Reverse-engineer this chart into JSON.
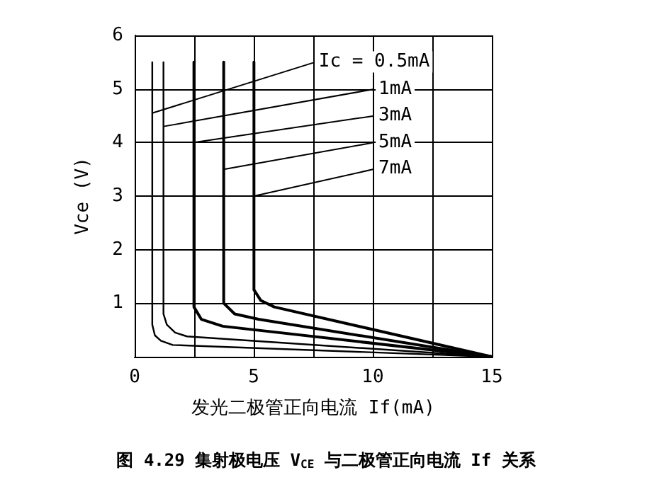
{
  "chart_data": {
    "type": "line",
    "title": "图 4.29 集射极电压 V$_{CE}$ 与二极管正向电流 If 关系",
    "xlabel": "发光二极管正向电流 If(mA)",
    "ylabel": "Vce (V)",
    "xlim": [
      0,
      15
    ],
    "xticks": [
      0,
      {
        "value": 2.5,
        "label": null
      },
      5,
      {
        "value": 7.5,
        "label": null
      },
      10,
      {
        "value": 12.5,
        "label": null
      },
      15
    ],
    "ylim": [
      0,
      6
    ],
    "yticks": [
      {
        "value": 0,
        "label": null
      },
      1,
      2,
      3,
      4,
      5,
      6
    ],
    "grid": true,
    "marker": "none",
    "line_style": "solid",
    "annotations": [
      {
        "text": "Ic = 0.5mA",
        "x": 0.74,
        "y": 4.55
      },
      {
        "text": "1mA",
        "x": 1.21,
        "y": 4.3
      },
      {
        "text": "3mA",
        "x": 2.49,
        "y": 4.0
      },
      {
        "text": "5mA",
        "x": 3.74,
        "y": 3.5
      },
      {
        "text": "7mA",
        "x": 5.01,
        "y": 3.0
      }
    ],
    "series": [
      {
        "color": "#000000",
        "x": [
          0.74,
          0.74,
          0.85,
          1.1,
          1.6,
          15
        ],
        "values": [
          5.5,
          0.6,
          0.4,
          0.3,
          0.22,
          0
        ]
      },
      {
        "color": "#000000",
        "x": [
          1.21,
          1.21,
          1.35,
          1.7,
          2.2,
          15
        ],
        "values": [
          5.5,
          0.8,
          0.6,
          0.45,
          0.38,
          0
        ]
      },
      {
        "color": "#000000",
        "x": [
          2.49,
          2.49,
          2.8,
          3.7,
          15
        ],
        "values": [
          5.5,
          0.93,
          0.7,
          0.57,
          0
        ]
      },
      {
        "color": "#000000",
        "x": [
          3.74,
          3.74,
          4.2,
          5.2,
          15
        ],
        "values": [
          5.5,
          1.0,
          0.8,
          0.7,
          0
        ]
      },
      {
        "color": "#000000",
        "x": [
          5.01,
          5.01,
          5.3,
          5.86,
          15
        ],
        "values": [
          5.5,
          1.25,
          1.05,
          0.93,
          0
        ]
      }
    ]
  }
}
